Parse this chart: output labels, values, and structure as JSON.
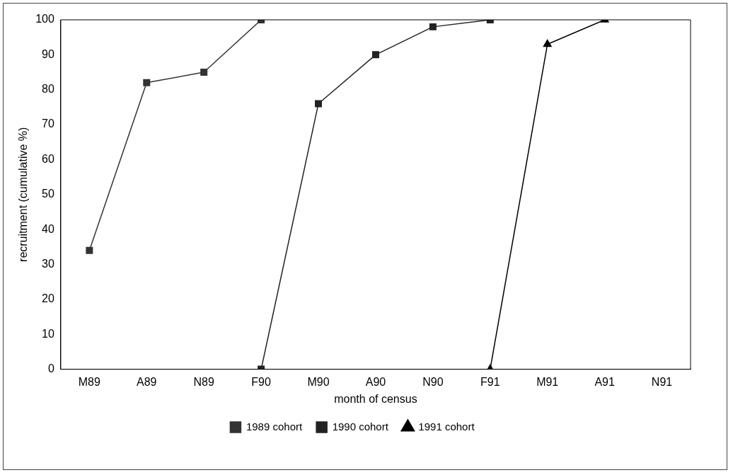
{
  "chart_data": {
    "type": "line",
    "xlabel": "month of census",
    "ylabel": "recruitment (cumulative %)",
    "categories": [
      "M89",
      "A89",
      "N89",
      "F90",
      "M90",
      "A90",
      "N90",
      "F91",
      "M91",
      "A91",
      "N91"
    ],
    "series": [
      {
        "name": "1989 cohort",
        "color": "#333333",
        "marker": "square",
        "values": [
          34,
          82,
          85,
          100,
          null,
          null,
          null,
          null,
          null,
          null,
          null
        ]
      },
      {
        "name": "1990 cohort",
        "color": "#222222",
        "marker": "square",
        "values": [
          null,
          null,
          null,
          0,
          76,
          90,
          98,
          100,
          null,
          null,
          null
        ]
      },
      {
        "name": "1991 cohort",
        "color": "#000000",
        "marker": "triangle",
        "values": [
          null,
          null,
          null,
          null,
          null,
          null,
          null,
          0,
          93,
          100,
          null
        ]
      }
    ],
    "ylim": [
      0,
      100
    ],
    "yticks": [
      0,
      10,
      20,
      30,
      40,
      50,
      60,
      70,
      80,
      90,
      100
    ],
    "grid": false,
    "legend": "bottom",
    "line_style": "solid"
  }
}
